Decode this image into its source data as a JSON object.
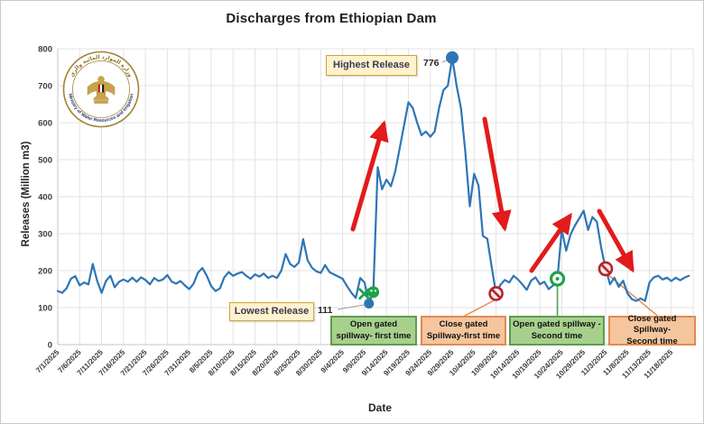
{
  "title": "Discharges from Ethiopian Dam",
  "logo": {
    "arabic": "وزارة الموارد المائية والري",
    "english": "Ministry of Water Resources and Irrigation"
  },
  "chart_data": {
    "type": "line",
    "title": "Discharges from Ethiopian Dam",
    "xlabel": "Date",
    "ylabel": "Releases (Million m3)",
    "ylim": [
      0,
      800
    ],
    "y_ticks": [
      0,
      100,
      200,
      300,
      400,
      500,
      600,
      700,
      800
    ],
    "x_tick_labels": [
      "7/1/2025",
      "7/6/2025",
      "7/11/2025",
      "7/16/2025",
      "7/21/2025",
      "7/26/2025",
      "7/31/2025",
      "8/5/2025",
      "8/10/2025",
      "8/15/2025",
      "8/20/2025",
      "8/25/2025",
      "8/30/2025",
      "9/4/2025",
      "9/9/2025",
      "9/14/2025",
      "9/19/2025",
      "9/24/2025",
      "9/29/2025",
      "10/4/2025",
      "10/9/2025",
      "10/14/2025",
      "10/19/2025",
      "10/24/2025",
      "10/29/2025",
      "11/3/2025",
      "11/8/2025",
      "11/13/2025",
      "11/18/2025"
    ],
    "grid": true,
    "legend": "none",
    "series": [
      {
        "name": "Releases",
        "start_date": "7/1/2025",
        "interval_days": 1,
        "values": [
          145,
          140,
          152,
          178,
          185,
          160,
          168,
          163,
          218,
          172,
          140,
          172,
          186,
          155,
          170,
          176,
          170,
          181,
          170,
          182,
          175,
          163,
          180,
          172,
          176,
          188,
          170,
          165,
          172,
          160,
          150,
          165,
          195,
          207,
          186,
          158,
          145,
          152,
          182,
          196,
          186,
          192,
          196,
          186,
          178,
          190,
          184,
          192,
          180,
          186,
          180,
          200,
          245,
          218,
          210,
          222,
          285,
          228,
          208,
          198,
          194,
          215,
          196,
          190,
          184,
          178,
          158,
          140,
          126,
          180,
          168,
          111,
          142,
          480,
          420,
          446,
          428,
          468,
          530,
          592,
          655,
          640,
          600,
          566,
          576,
          562,
          576,
          640,
          688,
          700,
          776,
          700,
          638,
          520,
          374,
          462,
          430,
          294,
          286,
          211,
          138,
          162,
          175,
          168,
          186,
          176,
          163,
          148,
          173,
          182,
          163,
          170,
          150,
          160,
          178,
          310,
          254,
          298,
          322,
          342,
          362,
          310,
          345,
          332,
          262,
          205,
          163,
          181,
          156,
          173,
          138,
          123,
          118,
          125,
          118,
          168,
          182,
          186,
          176,
          181,
          172,
          181,
          174,
          181,
          186
        ]
      }
    ]
  },
  "annotations": {
    "highest": {
      "label": "Highest Release",
      "value": "776",
      "date": "9/29/2025",
      "date_index": 90,
      "y": 776
    },
    "lowest": {
      "label": "Lowest Release",
      "value": "111",
      "date": "9/10/2025",
      "date_index": 71,
      "y": 111
    },
    "events": [
      {
        "label_lines": [
          "Open gated",
          "spillway- first time"
        ],
        "type": "open",
        "x_mark": true,
        "date_index": 72,
        "value": 142
      },
      {
        "label_lines": [
          "Close gated",
          "Spillway-first time"
        ],
        "type": "close",
        "x_mark": false,
        "date_index": 100,
        "value": 138
      },
      {
        "label_lines": [
          "Open gated spillway -",
          "Second time"
        ],
        "type": "open",
        "x_mark": false,
        "date_index": 114,
        "value": 178
      },
      {
        "label_lines": [
          "Close gated Spillway-",
          "Second time"
        ],
        "type": "close",
        "x_mark": false,
        "date_index": 125,
        "value": 205
      }
    ]
  },
  "colors": {
    "line": "#2E75B6",
    "arrow_red": "#E21B1B",
    "grid": "#E3E3E3",
    "axis": "#C6C6C6",
    "tick_text": "#3d3d3d",
    "open_marker_green": "#1EA34A",
    "close_marker_red": "#B4232D",
    "leader_orange": "#E08B4F",
    "leader_green": "#4FA24F",
    "leader_gray": "#9a9a9a",
    "note_bg": "#FFF2CC",
    "open_box_bg": "#A8D08D",
    "close_box_bg": "#F5C59E"
  }
}
